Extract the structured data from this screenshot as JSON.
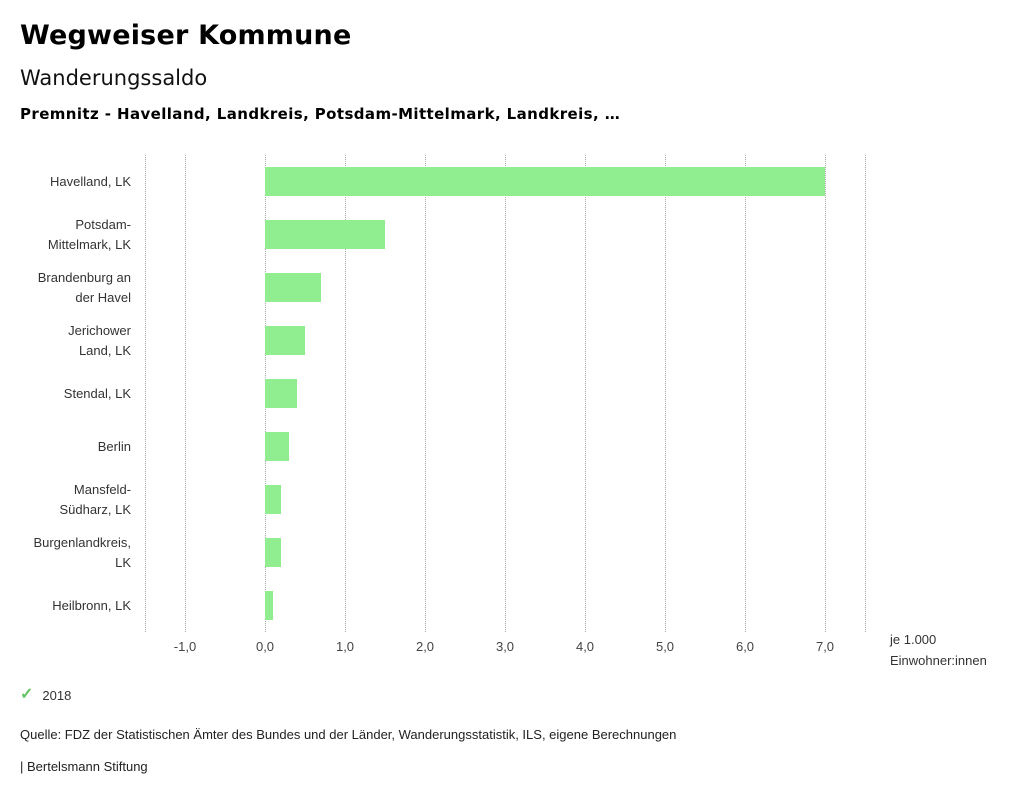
{
  "header": {
    "title": "Wegweiser Kommune",
    "subtitle": "Wanderungssaldo",
    "selection": "Premnitz - Havelland, Landkreis, Potsdam-Mittelmark, Landkreis, …"
  },
  "chart_data": {
    "type": "bar",
    "orientation": "horizontal",
    "title": "Wanderungssaldo",
    "categories": [
      "Havelland, LK",
      "Potsdam-Mittelmark, LK",
      "Brandenburg an der Havel",
      "Jerichower Land, LK",
      "Stendal, LK",
      "Berlin",
      "Mansfeld-Südharz, LK",
      "Burgenlandkreis, LK",
      "Heilbronn, LK"
    ],
    "category_lines": [
      [
        "Havelland, LK"
      ],
      [
        "Potsdam-",
        "Mittelmark, LK"
      ],
      [
        "Brandenburg an",
        "der Havel"
      ],
      [
        "Jerichower",
        "Land, LK"
      ],
      [
        "Stendal, LK"
      ],
      [
        "Berlin"
      ],
      [
        "Mansfeld-",
        "Südharz, LK"
      ],
      [
        "Burgenlandkreis,",
        "LK"
      ],
      [
        "Heilbronn, LK"
      ]
    ],
    "series": [
      {
        "name": "2018",
        "values": [
          7.0,
          1.5,
          0.7,
          0.5,
          0.4,
          0.3,
          0.2,
          0.2,
          0.1
        ]
      }
    ],
    "xlim": [
      -1.5,
      7.5
    ],
    "xticks": [
      -1.0,
      0.0,
      1.0,
      2.0,
      3.0,
      4.0,
      5.0,
      6.0,
      7.0
    ],
    "xtick_labels": [
      "-1,0",
      "0,0",
      "1,0",
      "2,0",
      "3,0",
      "4,0",
      "5,0",
      "6,0",
      "7,0"
    ],
    "xlabel": "je 1.000 Einwohner:innen",
    "unit_label_line1": "je 1.000",
    "unit_label_line2": "Einwohner:innen",
    "bar_color": "#90ee90",
    "grid": true,
    "legend_position": "bottom-left"
  },
  "legend": {
    "year": "2018",
    "check_color": "#62c462"
  },
  "footer": {
    "source": "Quelle: FDZ der Statistischen Ämter des Bundes und der Länder, Wanderungsstatistik, ILS, eigene Berechnungen",
    "brand": "| Bertelsmann Stiftung"
  }
}
